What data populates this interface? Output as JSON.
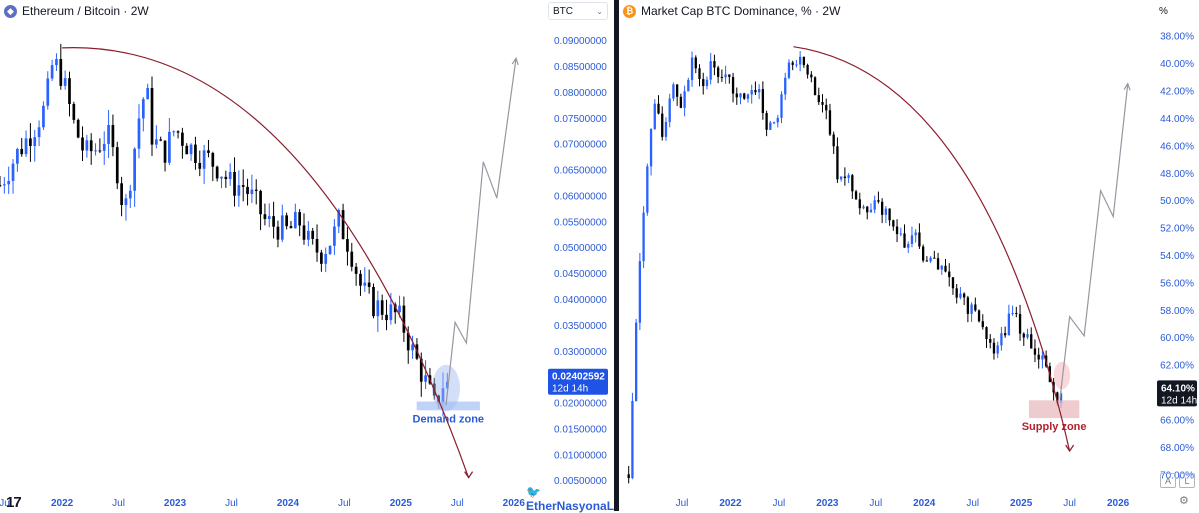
{
  "left": {
    "header": {
      "coin_icon": "ethereum-coin-icon",
      "title": "Ethereum / Bitcoin · 2W"
    },
    "unit_label": "BTC",
    "unit_select_icon": "chevron-down-icon",
    "price_tag": {
      "value": "0.02402592",
      "countdown": "12d 14h",
      "color": "#1e53e5"
    },
    "zone_label": "Demand zone",
    "logo": "tradingview-logo",
    "watermark": {
      "icon": "twitter-bird-icon",
      "text": "EtherNasyonaL"
    }
  },
  "right": {
    "header": {
      "coin_icon": "bitcoin-coin-icon",
      "title": "Market Cap BTC Dominance, % · 2W"
    },
    "unit_label": "%",
    "price_tag": {
      "value": "64.10%",
      "countdown": "12d 14h",
      "color": "#131722"
    },
    "zone_label": "Supply zone",
    "corner_buttons": [
      "A",
      "L"
    ],
    "settings_icon": "gear-icon"
  },
  "colors": {
    "up": "#2962ff",
    "down": "#000000",
    "curve": "#8b1e2d",
    "projection": "#9598a1",
    "demand_zone": "#aac4f5",
    "supply_zone": "#e8b9bd",
    "axis_text": "#2a5bd7"
  },
  "chart_data": [
    {
      "type": "candlestick",
      "title": "Ethereum / Bitcoin · 2W",
      "xlabel": "",
      "ylabel": "BTC",
      "scale": "linear",
      "y_ticks": [
        "0.09000000",
        "0.08500000",
        "0.08000000",
        "0.07500000",
        "0.07000000",
        "0.06500000",
        "0.06000000",
        "0.05500000",
        "0.05000000",
        "0.04500000",
        "0.04000000",
        "0.03500000",
        "0.03000000",
        "0.02500000",
        "0.02000000",
        "0.01500000",
        "0.01000000",
        "0.00500000"
      ],
      "ylim": [
        0.0035,
        0.0935
      ],
      "x_ticks": [
        "Jul",
        "2022",
        "Jul",
        "2023",
        "Jul",
        "2024",
        "Jul",
        "2025",
        "Jul",
        "2026"
      ],
      "x_tick_times": [
        2021.5,
        2022.0,
        2022.5,
        2023.0,
        2023.5,
        2024.0,
        2024.5,
        2025.0,
        2025.5,
        2026.0
      ],
      "xlim": [
        2021.45,
        2026.25
      ],
      "price_anchors": [
        [
          2021.45,
          0.062
        ],
        [
          2021.6,
          0.068
        ],
        [
          2021.75,
          0.073
        ],
        [
          2021.85,
          0.077
        ],
        [
          2021.92,
          0.086
        ],
        [
          2022.0,
          0.083
        ],
        [
          2022.1,
          0.074
        ],
        [
          2022.2,
          0.068
        ],
        [
          2022.3,
          0.069
        ],
        [
          2022.4,
          0.072
        ],
        [
          2022.5,
          0.064
        ],
        [
          2022.55,
          0.056
        ],
        [
          2022.6,
          0.063
        ],
        [
          2022.7,
          0.078
        ],
        [
          2022.75,
          0.08
        ],
        [
          2022.8,
          0.071
        ],
        [
          2022.9,
          0.068
        ],
        [
          2023.0,
          0.073
        ],
        [
          2023.1,
          0.07
        ],
        [
          2023.2,
          0.068
        ],
        [
          2023.3,
          0.067
        ],
        [
          2023.4,
          0.065
        ],
        [
          2023.5,
          0.062
        ],
        [
          2023.6,
          0.062
        ],
        [
          2023.7,
          0.059
        ],
        [
          2023.8,
          0.055
        ],
        [
          2023.9,
          0.054
        ],
        [
          2024.0,
          0.053
        ],
        [
          2024.1,
          0.055
        ],
        [
          2024.2,
          0.05
        ],
        [
          2024.3,
          0.049
        ],
        [
          2024.4,
          0.052
        ],
        [
          2024.45,
          0.055
        ],
        [
          2024.55,
          0.05
        ],
        [
          2024.65,
          0.042
        ],
        [
          2024.75,
          0.039
        ],
        [
          2024.85,
          0.038
        ],
        [
          2024.95,
          0.037
        ],
        [
          2025.0,
          0.036
        ],
        [
          2025.05,
          0.033
        ],
        [
          2025.12,
          0.029
        ],
        [
          2025.2,
          0.025
        ],
        [
          2025.27,
          0.021
        ],
        [
          2025.3,
          0.019
        ],
        [
          2025.33,
          0.021
        ],
        [
          2025.38,
          0.024
        ],
        [
          2025.42,
          0.024
        ]
      ],
      "last_price": 0.02402592,
      "arc": {
        "from": [
          2022.0,
          0.0885
        ],
        "control": [
          2024.2,
          0.0905
        ],
        "to": [
          2025.6,
          0.0055
        ]
      },
      "projection": [
        [
          2025.4,
          0.0195
        ],
        [
          2025.48,
          0.0355
        ],
        [
          2025.58,
          0.0315
        ],
        [
          2025.73,
          0.0665
        ],
        [
          2025.85,
          0.0595
        ],
        [
          2026.02,
          0.0865
        ]
      ],
      "zone": {
        "label": "Demand zone",
        "y_range": [
          0.0185,
          0.0202
        ],
        "x_range": [
          2025.14,
          2025.7
        ]
      },
      "marker_circle": {
        "center": [
          2025.4,
          0.0228
        ],
        "radius_y": 0.0045
      }
    },
    {
      "type": "candlestick",
      "title": "Market Cap BTC Dominance, % · 2W",
      "xlabel": "",
      "ylabel": "%",
      "scale": "linear-inverted",
      "y_ticks": [
        "38.00%",
        "40.00%",
        "42.00%",
        "44.00%",
        "46.00%",
        "48.00%",
        "50.00%",
        "52.00%",
        "54.00%",
        "56.00%",
        "58.00%",
        "60.00%",
        "62.00%",
        "64.00%",
        "66.00%",
        "68.00%",
        "70.00%"
      ],
      "ylim": [
        37.0,
        71.0
      ],
      "x_ticks": [
        "Jul",
        "2022",
        "Jul",
        "2023",
        "Jul",
        "2024",
        "Jul",
        "2025",
        "Jul",
        "2026"
      ],
      "x_tick_times": [
        2021.5,
        2022.0,
        2022.5,
        2023.0,
        2023.5,
        2024.0,
        2024.5,
        2025.0,
        2025.5,
        2026.0
      ],
      "xlim": [
        2020.85,
        2026.35
      ],
      "price_anchors": [
        [
          2020.95,
          70.0
        ],
        [
          2021.0,
          63.0
        ],
        [
          2021.05,
          56.0
        ],
        [
          2021.12,
          50.0
        ],
        [
          2021.2,
          43.0
        ],
        [
          2021.3,
          45.0
        ],
        [
          2021.4,
          41.5
        ],
        [
          2021.5,
          43.0
        ],
        [
          2021.6,
          40.0
        ],
        [
          2021.7,
          42.0
        ],
        [
          2021.8,
          40.0
        ],
        [
          2021.9,
          41.0
        ],
        [
          2022.0,
          41.5
        ],
        [
          2022.1,
          42.5
        ],
        [
          2022.2,
          42.0
        ],
        [
          2022.3,
          42.5
        ],
        [
          2022.4,
          45.0
        ],
        [
          2022.5,
          43.5
        ],
        [
          2022.6,
          40.5
        ],
        [
          2022.7,
          39.8
        ],
        [
          2022.8,
          41.0
        ],
        [
          2022.9,
          42.5
        ],
        [
          2023.0,
          44.0
        ],
        [
          2023.1,
          48.0
        ],
        [
          2023.2,
          48.5
        ],
        [
          2023.3,
          49.5
        ],
        [
          2023.4,
          51.0
        ],
        [
          2023.5,
          49.5
        ],
        [
          2023.6,
          51.0
        ],
        [
          2023.7,
          52.0
        ],
        [
          2023.8,
          53.0
        ],
        [
          2023.9,
          52.5
        ],
        [
          2024.0,
          54.0
        ],
        [
          2024.1,
          54.5
        ],
        [
          2024.2,
          55.0
        ],
        [
          2024.3,
          56.0
        ],
        [
          2024.4,
          57.5
        ],
        [
          2024.5,
          58.0
        ],
        [
          2024.6,
          59.0
        ],
        [
          2024.7,
          61.0
        ],
        [
          2024.8,
          60.0
        ],
        [
          2024.9,
          58.0
        ],
        [
          2024.95,
          58.5
        ],
        [
          2025.0,
          59.5
        ],
        [
          2025.1,
          60.5
        ],
        [
          2025.2,
          61.5
        ],
        [
          2025.28,
          63.0
        ],
        [
          2025.33,
          64.5
        ],
        [
          2025.38,
          64.3
        ],
        [
          2025.42,
          64.1
        ]
      ],
      "last_price": 64.1,
      "arc": {
        "from": [
          2022.65,
          38.8
        ],
        "control": [
          2024.6,
          40.8
        ],
        "to": [
          2025.5,
          68.3
        ]
      },
      "projection": [
        [
          2025.4,
          64.5
        ],
        [
          2025.5,
          58.5
        ],
        [
          2025.65,
          59.9
        ],
        [
          2025.82,
          49.3
        ],
        [
          2025.95,
          51.2
        ],
        [
          2026.1,
          41.5
        ]
      ],
      "zone": {
        "label": "Supply zone",
        "y_range": [
          64.6,
          65.9
        ],
        "x_range": [
          2025.08,
          2025.6
        ]
      },
      "marker_circle": {
        "center": [
          2025.42,
          62.8
        ],
        "radius_y": 1.0
      }
    }
  ]
}
